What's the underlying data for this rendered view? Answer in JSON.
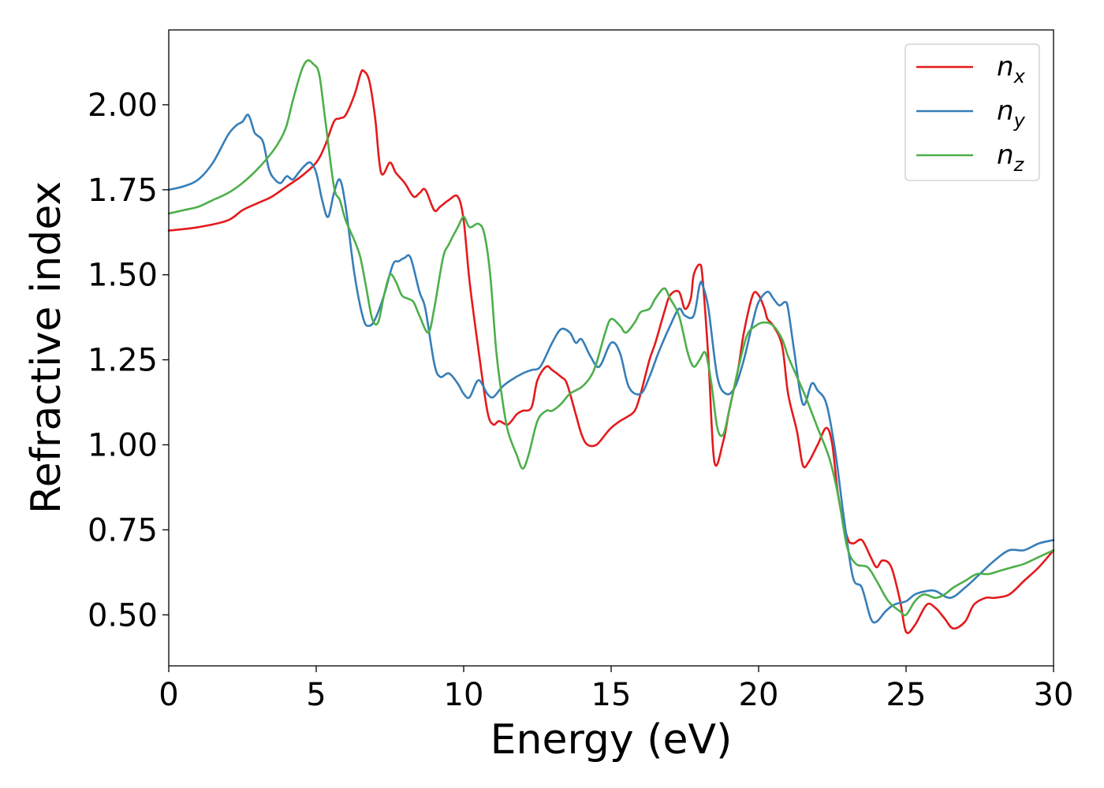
{
  "chart_data": {
    "type": "line",
    "title": "",
    "xlabel": "Energy (eV)",
    "ylabel": "Refractive index",
    "xlim": [
      0,
      30
    ],
    "ylim": [
      0.35,
      2.22
    ],
    "xticks": [
      0,
      5,
      10,
      15,
      20,
      25,
      30
    ],
    "xtick_labels": [
      "0",
      "5",
      "10",
      "15",
      "20",
      "25",
      "30"
    ],
    "yticks": [
      0.5,
      0.75,
      1.0,
      1.25,
      1.5,
      1.75,
      2.0
    ],
    "ytick_labels": [
      "0.50",
      "0.75",
      "1.00",
      "1.25",
      "1.50",
      "1.75",
      "2.00"
    ],
    "grid": false,
    "legend_position": "top-right",
    "series": [
      {
        "name": "n",
        "subscript": "x",
        "color": "#e41a1c",
        "x": [
          0,
          1,
          2,
          2.5,
          3,
          3.5,
          4,
          4.5,
          5,
          5.3,
          5.6,
          5.8,
          6.0,
          6.3,
          6.5,
          6.6,
          6.8,
          7.0,
          7.2,
          7.5,
          7.7,
          8.0,
          8.3,
          8.5,
          8.7,
          9.0,
          9.2,
          9.5,
          9.8,
          10.0,
          10.2,
          10.5,
          10.8,
          11.0,
          11.2,
          11.5,
          11.8,
          12.0,
          12.3,
          12.5,
          12.8,
          13.0,
          13.3,
          13.5,
          13.8,
          14.0,
          14.2,
          14.5,
          14.8,
          15.0,
          15.3,
          15.5,
          15.8,
          16.0,
          16.3,
          16.5,
          16.8,
          17.0,
          17.3,
          17.5,
          17.7,
          17.8,
          18.0,
          18.1,
          18.3,
          18.5,
          18.8,
          19.0,
          19.3,
          19.5,
          19.8,
          20.0,
          20.2,
          20.3,
          20.5,
          20.8,
          21.0,
          21.3,
          21.5,
          21.7,
          22.0,
          22.3,
          22.5,
          22.7,
          23.0,
          23.2,
          23.5,
          23.8,
          24.0,
          24.2,
          24.5,
          24.8,
          25.0,
          25.3,
          25.7,
          26.0,
          26.3,
          26.6,
          27.0,
          27.3,
          27.7,
          28.0,
          28.5,
          29.0,
          29.5,
          30.0
        ],
        "y": [
          1.63,
          1.64,
          1.66,
          1.69,
          1.71,
          1.73,
          1.76,
          1.79,
          1.83,
          1.88,
          1.95,
          1.96,
          1.97,
          2.03,
          2.09,
          2.1,
          2.07,
          1.96,
          1.8,
          1.83,
          1.8,
          1.77,
          1.73,
          1.74,
          1.75,
          1.69,
          1.7,
          1.72,
          1.73,
          1.66,
          1.48,
          1.28,
          1.1,
          1.06,
          1.07,
          1.06,
          1.09,
          1.1,
          1.11,
          1.19,
          1.23,
          1.22,
          1.2,
          1.18,
          1.09,
          1.03,
          1.0,
          1.0,
          1.03,
          1.05,
          1.07,
          1.08,
          1.1,
          1.15,
          1.25,
          1.3,
          1.39,
          1.44,
          1.45,
          1.4,
          1.43,
          1.5,
          1.53,
          1.49,
          1.25,
          0.95,
          1.01,
          1.1,
          1.22,
          1.33,
          1.44,
          1.44,
          1.4,
          1.37,
          1.35,
          1.29,
          1.15,
          1.04,
          0.94,
          0.95,
          1.0,
          1.05,
          1.0,
          0.85,
          0.73,
          0.71,
          0.72,
          0.67,
          0.64,
          0.66,
          0.64,
          0.54,
          0.45,
          0.47,
          0.53,
          0.52,
          0.49,
          0.46,
          0.48,
          0.53,
          0.55,
          0.55,
          0.56,
          0.6,
          0.64,
          0.69
        ]
      },
      {
        "name": "n",
        "subscript": "y",
        "color": "#377eb8",
        "x": [
          0,
          0.5,
          1,
          1.5,
          2.0,
          2.3,
          2.5,
          2.7,
          2.9,
          3.0,
          3.2,
          3.4,
          3.6,
          3.8,
          4.0,
          4.2,
          4.4,
          4.6,
          4.8,
          5.0,
          5.2,
          5.4,
          5.6,
          5.8,
          6.0,
          6.3,
          6.6,
          6.8,
          7.0,
          7.3,
          7.6,
          7.8,
          8.0,
          8.2,
          8.5,
          8.7,
          9.0,
          9.2,
          9.5,
          9.8,
          10.0,
          10.2,
          10.5,
          10.8,
          11.0,
          11.3,
          11.6,
          12.0,
          12.3,
          12.6,
          13.0,
          13.3,
          13.6,
          13.8,
          14.0,
          14.3,
          14.6,
          15.0,
          15.3,
          15.6,
          16.0,
          16.3,
          16.6,
          17.0,
          17.3,
          17.5,
          17.8,
          18.0,
          18.1,
          18.3,
          18.6,
          18.9,
          19.2,
          19.5,
          19.8,
          20.0,
          20.3,
          20.5,
          20.7,
          20.9,
          21.0,
          21.2,
          21.5,
          21.8,
          22.0,
          22.3,
          22.6,
          22.9,
          23.2,
          23.5,
          23.8,
          24.0,
          24.3,
          24.6,
          25.0,
          25.3,
          25.7,
          26.0,
          26.5,
          27.0,
          27.5,
          28.0,
          28.5,
          29.0,
          29.5,
          30.0
        ],
        "y": [
          1.75,
          1.76,
          1.78,
          1.83,
          1.91,
          1.94,
          1.95,
          1.97,
          1.92,
          1.91,
          1.89,
          1.81,
          1.78,
          1.77,
          1.79,
          1.78,
          1.8,
          1.82,
          1.83,
          1.8,
          1.72,
          1.67,
          1.74,
          1.78,
          1.7,
          1.5,
          1.37,
          1.35,
          1.37,
          1.44,
          1.53,
          1.54,
          1.55,
          1.55,
          1.45,
          1.4,
          1.24,
          1.2,
          1.21,
          1.18,
          1.15,
          1.14,
          1.19,
          1.15,
          1.14,
          1.17,
          1.19,
          1.21,
          1.22,
          1.23,
          1.3,
          1.34,
          1.33,
          1.3,
          1.31,
          1.26,
          1.23,
          1.3,
          1.27,
          1.17,
          1.15,
          1.2,
          1.27,
          1.35,
          1.4,
          1.38,
          1.38,
          1.47,
          1.47,
          1.4,
          1.2,
          1.15,
          1.17,
          1.25,
          1.36,
          1.42,
          1.45,
          1.43,
          1.41,
          1.42,
          1.4,
          1.28,
          1.12,
          1.18,
          1.16,
          1.12,
          0.98,
          0.78,
          0.61,
          0.58,
          0.49,
          0.48,
          0.51,
          0.53,
          0.54,
          0.56,
          0.57,
          0.57,
          0.55,
          0.58,
          0.62,
          0.66,
          0.69,
          0.69,
          0.71,
          0.72
        ]
      },
      {
        "name": "n",
        "subscript": "z",
        "color": "#4daf4a",
        "x": [
          0,
          0.5,
          1,
          1.5,
          2.0,
          2.5,
          3.0,
          3.5,
          3.8,
          4.0,
          4.2,
          4.5,
          4.7,
          4.9,
          5.1,
          5.3,
          5.6,
          5.8,
          6.0,
          6.3,
          6.5,
          6.7,
          6.9,
          7.1,
          7.3,
          7.5,
          7.7,
          7.9,
          8.1,
          8.3,
          8.5,
          8.8,
          9.0,
          9.3,
          9.5,
          9.8,
          10.0,
          10.2,
          10.5,
          10.7,
          10.9,
          11.1,
          11.3,
          11.5,
          11.8,
          12.0,
          12.2,
          12.5,
          12.8,
          13.0,
          13.3,
          13.6,
          14.0,
          14.3,
          14.5,
          14.8,
          15.0,
          15.3,
          15.5,
          15.8,
          16.0,
          16.3,
          16.5,
          16.8,
          17.0,
          17.3,
          17.6,
          17.8,
          18.0,
          18.2,
          18.4,
          18.6,
          18.8,
          19.0,
          19.3,
          19.6,
          19.9,
          20.2,
          20.5,
          20.8,
          21.0,
          21.3,
          21.6,
          22.0,
          22.4,
          22.7,
          23.0,
          23.3,
          23.7,
          24.0,
          24.4,
          24.8,
          25.0,
          25.3,
          25.6,
          26.0,
          26.3,
          26.6,
          27.0,
          27.4,
          27.8,
          28.2,
          28.6,
          29.0,
          29.5,
          30.0
        ],
        "y": [
          1.68,
          1.69,
          1.7,
          1.72,
          1.74,
          1.77,
          1.81,
          1.86,
          1.9,
          1.94,
          2.01,
          2.1,
          2.13,
          2.12,
          2.09,
          1.96,
          1.76,
          1.72,
          1.66,
          1.6,
          1.55,
          1.46,
          1.37,
          1.36,
          1.44,
          1.5,
          1.48,
          1.44,
          1.43,
          1.42,
          1.38,
          1.33,
          1.4,
          1.55,
          1.59,
          1.64,
          1.67,
          1.64,
          1.65,
          1.62,
          1.5,
          1.28,
          1.14,
          1.04,
          0.97,
          0.93,
          0.97,
          1.07,
          1.1,
          1.1,
          1.12,
          1.15,
          1.17,
          1.2,
          1.24,
          1.33,
          1.37,
          1.35,
          1.33,
          1.36,
          1.39,
          1.4,
          1.43,
          1.46,
          1.43,
          1.38,
          1.27,
          1.23,
          1.25,
          1.27,
          1.18,
          1.05,
          1.03,
          1.1,
          1.22,
          1.32,
          1.35,
          1.36,
          1.35,
          1.31,
          1.26,
          1.2,
          1.14,
          1.05,
          0.96,
          0.85,
          0.7,
          0.65,
          0.64,
          0.6,
          0.54,
          0.51,
          0.5,
          0.54,
          0.56,
          0.55,
          0.56,
          0.58,
          0.6,
          0.62,
          0.62,
          0.63,
          0.64,
          0.65,
          0.67,
          0.69
        ]
      }
    ]
  }
}
